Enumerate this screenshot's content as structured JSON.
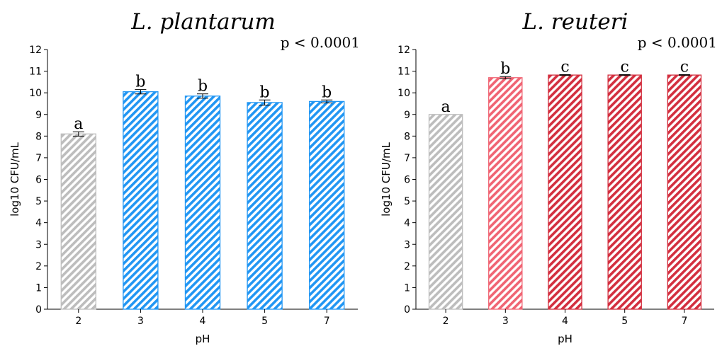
{
  "chart_data": [
    {
      "type": "bar",
      "title": "L. plantarum",
      "annotation": "p < 0.0001",
      "xlabel": "pH",
      "ylabel": "log10 CFU/mL",
      "ylim": [
        0,
        12
      ],
      "yticks": [
        0,
        1,
        2,
        3,
        4,
        5,
        6,
        7,
        8,
        9,
        10,
        11,
        12
      ],
      "categories": [
        "2",
        "3",
        "4",
        "5",
        "7"
      ],
      "values": [
        8.1,
        10.05,
        9.85,
        9.55,
        9.6
      ],
      "errors": [
        0.1,
        0.1,
        0.1,
        0.12,
        0.07
      ],
      "significance": [
        "a",
        "b",
        "b",
        "b",
        "b"
      ],
      "colors": [
        "#bdbdbd",
        "#2196f3",
        "#2196f3",
        "#2196f3",
        "#2196f3"
      ],
      "grid": false
    },
    {
      "type": "bar",
      "title": "L. reuteri",
      "annotation": "p < 0.0001",
      "xlabel": "pH",
      "ylabel": "log10 CFU/mL",
      "ylim": [
        0,
        12
      ],
      "yticks": [
        0,
        1,
        2,
        3,
        4,
        5,
        6,
        7,
        8,
        9,
        10,
        11,
        12
      ],
      "categories": [
        "2",
        "3",
        "4",
        "5",
        "7"
      ],
      "values": [
        9.0,
        10.7,
        10.82,
        10.82,
        10.82
      ],
      "errors": [
        0.0,
        0.05,
        0.02,
        0.02,
        0.02
      ],
      "significance": [
        "a",
        "b",
        "c",
        "c",
        "c"
      ],
      "colors": [
        "#bdbdbd",
        "#f06473",
        "#d32f3f",
        "#d32f3f",
        "#d32f3f"
      ],
      "grid": false
    }
  ]
}
